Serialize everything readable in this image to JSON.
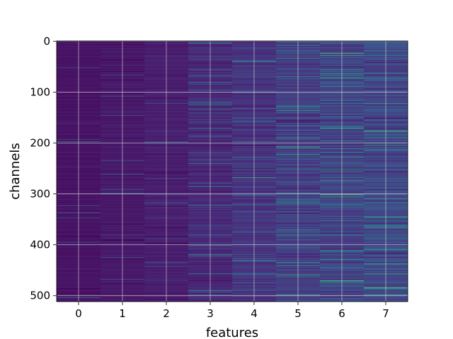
{
  "chart_data": {
    "type": "heatmap",
    "xlabel": "features",
    "ylabel": "channels",
    "x_ticks": [
      "0",
      "1",
      "2",
      "3",
      "4",
      "5",
      "6",
      "7"
    ],
    "y_ticks": [
      "0",
      "100",
      "200",
      "300",
      "400",
      "500"
    ],
    "n_features": 8,
    "n_channels": 512,
    "xlim": [
      -0.5,
      7.5
    ],
    "ylim": [
      511.5,
      -0.5
    ],
    "y_axis_inverted": true,
    "grid": true,
    "colormap": "viridis",
    "column_intensity_mean": [
      0.06,
      0.08,
      0.1,
      0.14,
      0.18,
      0.22,
      0.24,
      0.26
    ],
    "column_intensity_spread": [
      0.04,
      0.05,
      0.07,
      0.1,
      0.14,
      0.18,
      0.2,
      0.22
    ],
    "colors": {
      "background": "#ffffff",
      "grid": "#d9d9d9",
      "text": "#000000",
      "spine": "#000000"
    }
  }
}
